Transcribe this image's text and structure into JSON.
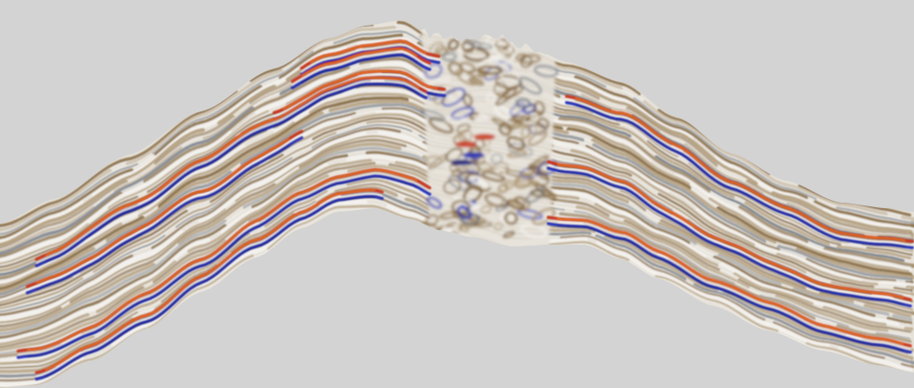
{
  "scene": {
    "subject": "seismic-section",
    "colors": {
      "background": "#d3d3d3",
      "body_base": "#e6e2d9",
      "positive_strong": "#c8361c",
      "positive_core": "#f08a1e",
      "negative_strong": "#2530b4",
      "negative_dark": "#1a1f7a",
      "sediment_brown": "#7a5a2a",
      "sediment_tan": "#a8906a",
      "sediment_grey": "#6c7480",
      "gap": "#f4f2ee"
    },
    "icons": []
  }
}
